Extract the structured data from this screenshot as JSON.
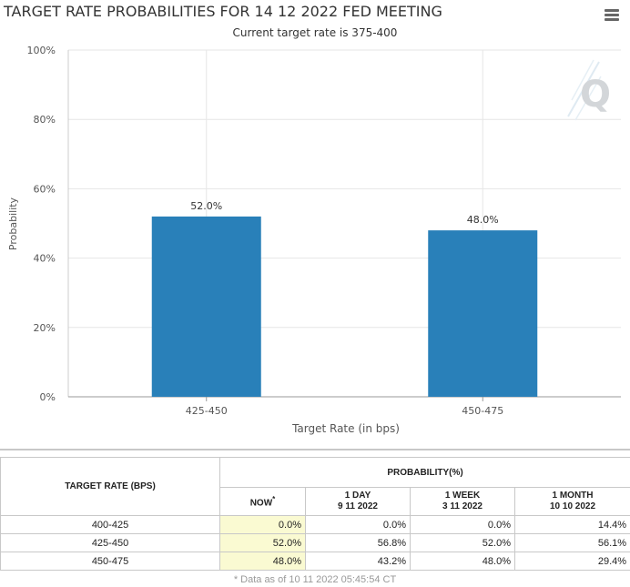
{
  "header": {
    "title": "TARGET RATE PROBABILITIES FOR 14 12 2022 FED MEETING",
    "subtitle": "Current target rate is 375-400",
    "menu_icon": "hamburger-menu-icon"
  },
  "colors": {
    "bar": "#2980b9",
    "grid": "#e6e6e6",
    "now_column": "#fafad2",
    "watermark": "#d9e6ee"
  },
  "chart_data": {
    "type": "bar",
    "categories": [
      "425-450",
      "450-475"
    ],
    "values": [
      52.0,
      48.0
    ],
    "data_labels": [
      "52.0%",
      "48.0%"
    ],
    "title": "TARGET RATE PROBABILITIES FOR 14 12 2022 FED MEETING",
    "subtitle": "Current target rate is 375-400",
    "xlabel": "Target Rate (in bps)",
    "ylabel": "Probability",
    "ylim": [
      0,
      100
    ],
    "yticks": [
      0,
      20,
      40,
      60,
      80,
      100
    ],
    "ytick_labels": [
      "0%",
      "20%",
      "40%",
      "60%",
      "80%",
      "100%"
    ],
    "grid": true,
    "watermark": "Q"
  },
  "table": {
    "rate_header": "TARGET RATE (BPS)",
    "probability_header": "PROBABILITY(%)",
    "columns": [
      {
        "line1": "NOW",
        "line2": "",
        "marker": "*"
      },
      {
        "line1": "1 DAY",
        "line2": "9 11 2022"
      },
      {
        "line1": "1 WEEK",
        "line2": "3 11 2022"
      },
      {
        "line1": "1 MONTH",
        "line2": "10 10 2022"
      }
    ],
    "rows": [
      {
        "rate": "400-425",
        "now": "0.0%",
        "day": "0.0%",
        "week": "0.0%",
        "month": "14.4%"
      },
      {
        "rate": "425-450",
        "now": "52.0%",
        "day": "56.8%",
        "week": "52.0%",
        "month": "56.1%"
      },
      {
        "rate": "450-475",
        "now": "48.0%",
        "day": "43.2%",
        "week": "48.0%",
        "month": "29.4%"
      }
    ],
    "footnote": "* Data as of 10 11 2022 05:45:54 CT"
  }
}
